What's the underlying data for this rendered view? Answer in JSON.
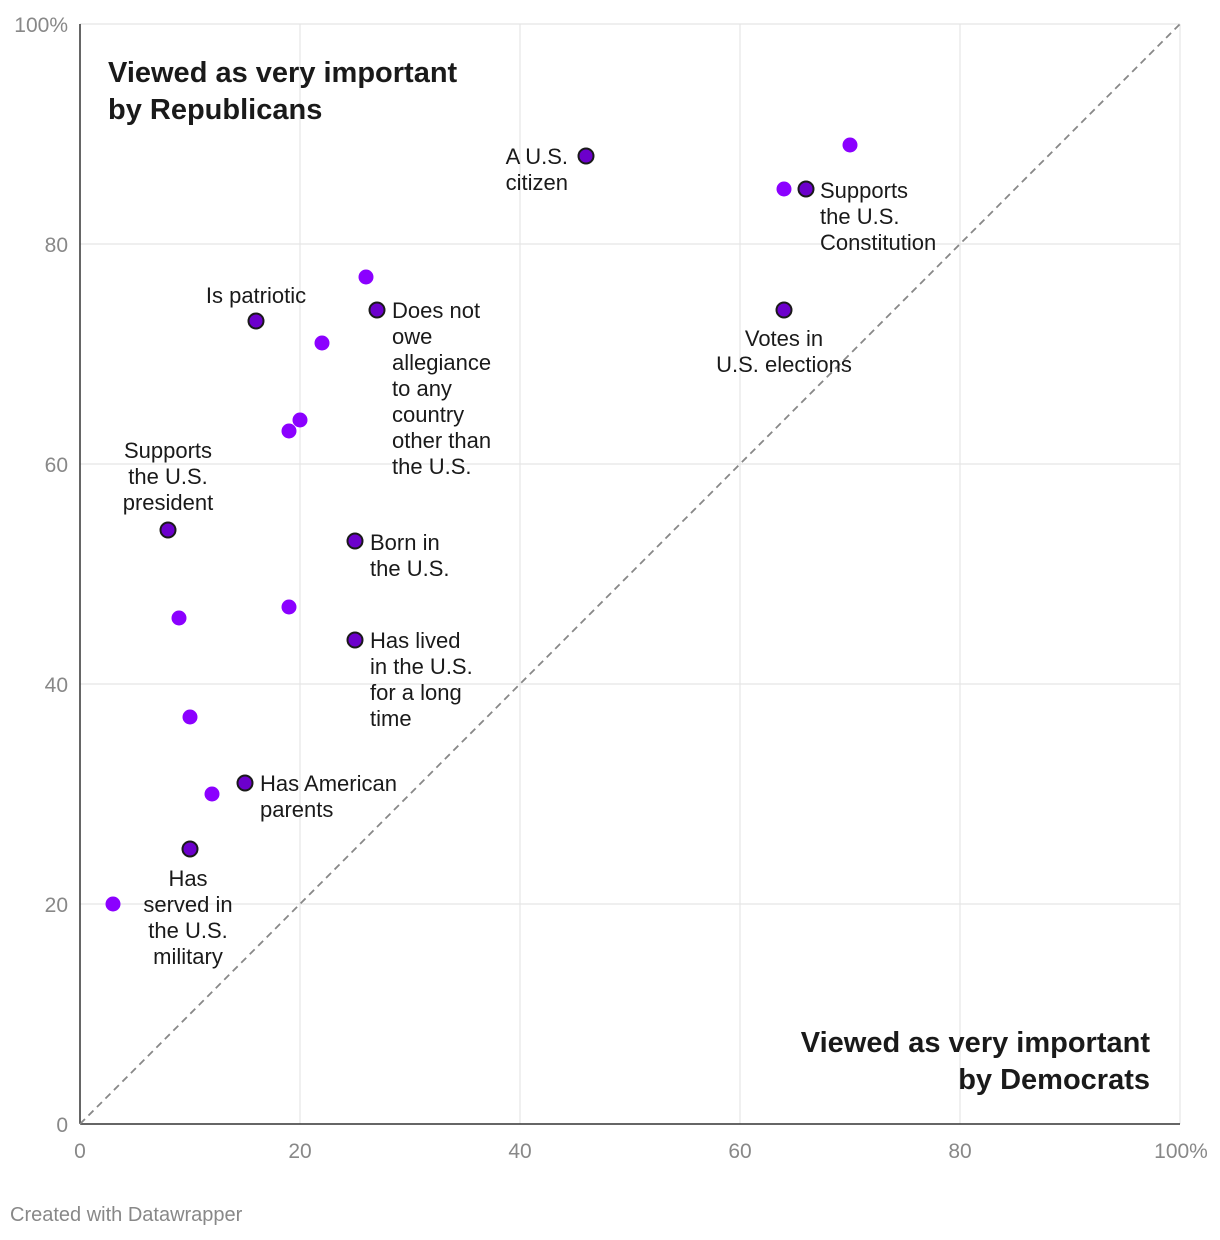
{
  "chart_data": {
    "type": "scatter",
    "x_range": [
      0,
      100
    ],
    "y_range": [
      0,
      100
    ],
    "x_ticks": [
      "0",
      "20",
      "40",
      "60",
      "80",
      "100%"
    ],
    "y_ticks": [
      "0",
      "20",
      "40",
      "60",
      "80",
      "100%"
    ],
    "grid": true,
    "diagonal_reference_line": true,
    "annotations": {
      "top_left": [
        "Viewed as very important",
        "by Republicans"
      ],
      "bottom_right": [
        "Viewed as very important",
        "by Democrats"
      ]
    },
    "points": [
      {
        "x": 46,
        "y": 88,
        "outlined": true,
        "label": [
          "A U.S.",
          "citizen"
        ]
      },
      {
        "x": 66,
        "y": 85,
        "outlined": true,
        "label": [
          "Supports",
          "the U.S.",
          "Constitution"
        ]
      },
      {
        "x": 64,
        "y": 74,
        "outlined": true,
        "label": [
          "Votes in",
          "U.S. elections"
        ]
      },
      {
        "x": 16,
        "y": 73,
        "outlined": true,
        "label": [
          "Is patriotic"
        ]
      },
      {
        "x": 27,
        "y": 74,
        "outlined": true,
        "label": [
          "Does not",
          "owe",
          "allegiance",
          "to any",
          "country",
          "other than",
          "the U.S."
        ]
      },
      {
        "x": 8,
        "y": 54,
        "outlined": true,
        "label": [
          "Supports",
          "the U.S.",
          "president"
        ]
      },
      {
        "x": 25,
        "y": 53,
        "outlined": true,
        "label": [
          "Born in",
          "the U.S."
        ]
      },
      {
        "x": 25,
        "y": 44,
        "outlined": true,
        "label": [
          "Has lived",
          "in the U.S.",
          "for a long",
          "time"
        ]
      },
      {
        "x": 15,
        "y": 31,
        "outlined": true,
        "label": [
          "Has American",
          "parents"
        ]
      },
      {
        "x": 10,
        "y": 25,
        "outlined": true,
        "label": [
          "Has",
          "served in",
          "the U.S.",
          "military"
        ]
      },
      {
        "x": 70,
        "y": 89,
        "outlined": false,
        "label": []
      },
      {
        "x": 64,
        "y": 85,
        "outlined": false,
        "label": []
      },
      {
        "x": 26,
        "y": 77,
        "outlined": false,
        "label": []
      },
      {
        "x": 22,
        "y": 71,
        "outlined": false,
        "label": []
      },
      {
        "x": 20,
        "y": 64,
        "outlined": false,
        "label": []
      },
      {
        "x": 19,
        "y": 63,
        "outlined": false,
        "label": []
      },
      {
        "x": 19,
        "y": 47,
        "outlined": false,
        "label": []
      },
      {
        "x": 9,
        "y": 46,
        "outlined": false,
        "label": []
      },
      {
        "x": 10,
        "y": 37,
        "outlined": false,
        "label": []
      },
      {
        "x": 12,
        "y": 30,
        "outlined": false,
        "label": []
      },
      {
        "x": 3,
        "y": 20,
        "outlined": false,
        "label": []
      }
    ],
    "colors": {
      "dot": "#8b00ff",
      "outlined_dot": "#6c00cc",
      "outline": "#1a1a1a",
      "grid": "#e5e5e5",
      "axis": "#333333",
      "diagonal": "#888888"
    }
  },
  "footer": {
    "credit": "Created with Datawrapper"
  }
}
